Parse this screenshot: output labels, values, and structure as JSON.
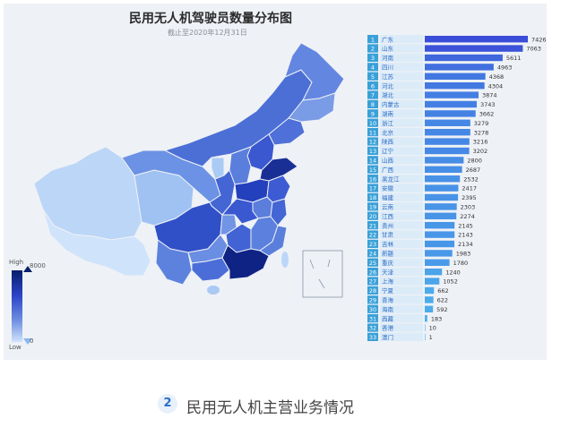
{
  "title": "民用无人机驾驶员数量分布图",
  "subtitle": "截止至2020年12月31日",
  "legend": {
    "high": "High",
    "low": "Low",
    "max": "8000",
    "min": "0"
  },
  "section": {
    "number": "2",
    "title": "民用无人机主营业务情况"
  },
  "colors": {
    "dark": "#0a1d6b",
    "mid": "#2b44c8",
    "light": "#cfe3fb",
    "rankBg": "#3aa1d8"
  },
  "chart_data": {
    "type": "bar",
    "orientation": "horizontal",
    "title": "民用无人机驾驶员数量分布图",
    "subtitle": "截止至2020年12月31日",
    "ranks": [
      "1",
      "2",
      "3",
      "4",
      "5",
      "6",
      "7",
      "8",
      "9",
      "10",
      "11",
      "12",
      "13",
      "14",
      "15",
      "16",
      "17",
      "18",
      "19",
      "20",
      "21",
      "22",
      "23",
      "24",
      "25",
      "26",
      "27",
      "28",
      "29",
      "30",
      "31",
      "32",
      "33"
    ],
    "categories": [
      "广东",
      "山东",
      "河南",
      "四川",
      "江苏",
      "河北",
      "湖北",
      "内蒙古",
      "湖南",
      "浙江",
      "北京",
      "陕西",
      "辽宁",
      "山西",
      "广西",
      "黑龙江",
      "安徽",
      "福建",
      "云南",
      "江西",
      "贵州",
      "甘肃",
      "吉林",
      "新疆",
      "重庆",
      "天津",
      "上海",
      "宁夏",
      "青海",
      "海南",
      "西藏",
      "香港",
      "澳门"
    ],
    "labels": [
      "7426",
      "7063",
      "5611",
      "4963",
      "4368",
      "4304",
      "3874",
      "3743",
      "3662",
      "3279",
      "3278",
      "3216",
      "3202",
      "2800",
      "2687",
      "2532",
      "2417",
      "2395",
      "2303",
      "2274",
      "2145",
      "2143",
      "2134",
      "1983",
      "1780",
      "1240",
      "1052",
      "662",
      "622",
      "592",
      "183",
      "10",
      "1"
    ],
    "values": [
      7426,
      7063,
      5611,
      4963,
      4368,
      4304,
      3874,
      3743,
      3662,
      3279,
      3278,
      3216,
      3202,
      2800,
      2687,
      2532,
      2417,
      2395,
      2303,
      2274,
      2145,
      2143,
      2134,
      1983,
      1780,
      1240,
      1052,
      662,
      622,
      592,
      183,
      10,
      1
    ],
    "scale_max": 8000,
    "map": {
      "type": "choropleth",
      "region": "China",
      "scale": {
        "min": 0,
        "max": 8000,
        "low_label": "Low",
        "high_label": "High"
      }
    }
  }
}
